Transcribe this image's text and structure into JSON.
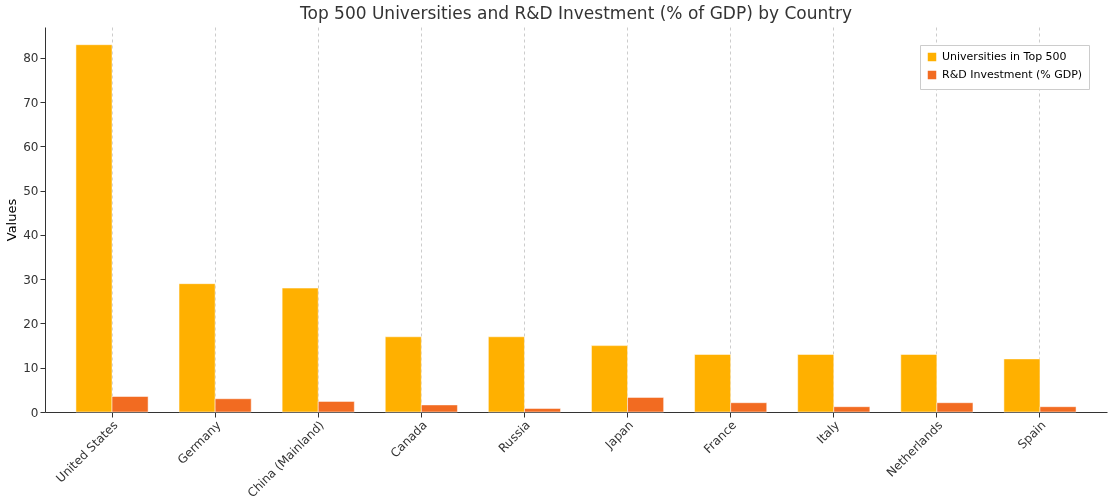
{
  "chart_data": {
    "type": "bar",
    "title": "Top 500 Universities and R&D Investment (% of GDP) by Country",
    "ylabel": "Values",
    "categories": [
      "United States",
      "Germany",
      "China (Mainland)",
      "Canada",
      "Russia",
      "Japan",
      "France",
      "Italy",
      "Netherlands",
      "Spain"
    ],
    "series": [
      {
        "name": "Universities in Top 500",
        "color": "#ffb000",
        "values": [
          83,
          29,
          28,
          17,
          17,
          15,
          13,
          13,
          13,
          12
        ]
      },
      {
        "name": "R&D Investment (% GDP)",
        "color": "#f26b21",
        "values": [
          3.5,
          3.0,
          2.4,
          1.6,
          0.8,
          3.3,
          2.1,
          1.2,
          2.1,
          1.2
        ]
      }
    ],
    "ylim": [
      0,
      87
    ],
    "yticks": [
      0,
      10,
      20,
      30,
      40,
      50,
      60,
      70,
      80
    ],
    "grid": "x",
    "legend": "top right"
  }
}
